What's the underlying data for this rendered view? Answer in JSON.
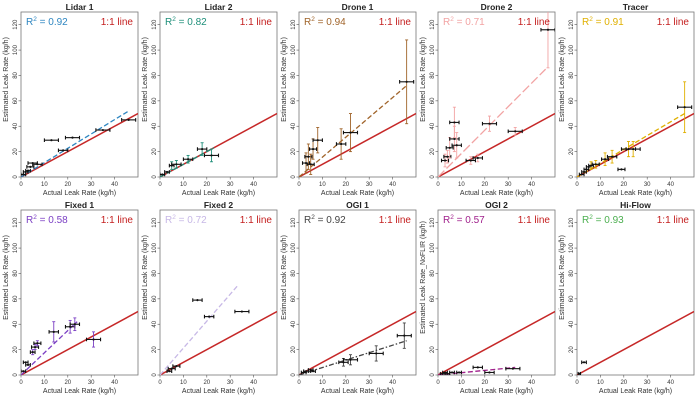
{
  "figure": {
    "one_to_one_label": "1:1 line",
    "one_to_one_color": "#c62828",
    "errorbar_color": "#111111",
    "xlabel": "Actual Leak Rate (kg/h)",
    "ylabel": "Estimated Leak Rate (kg/h)"
  },
  "chart_data": [
    {
      "type": "scatter",
      "title": "Lidar 1",
      "r2_label": "R",
      "r2_value": " = 0.92",
      "color": "#2e86c1",
      "xlabel": "Actual Leak Rate (kg/h)",
      "ylabel": "Estimated Leak Rate (kg/h)",
      "xlim": [
        0,
        50
      ],
      "ylim": [
        0,
        130
      ],
      "xticks": [
        0,
        10,
        20,
        30,
        40
      ],
      "yticks": [
        0,
        20,
        40,
        60,
        80,
        100,
        120
      ],
      "grid": false,
      "points": [
        {
          "x": 1,
          "y": 2,
          "ex": 1
        },
        {
          "x": 2,
          "y": 4,
          "ex": 1
        },
        {
          "x": 3,
          "y": 5,
          "ex": 1
        },
        {
          "x": 4,
          "y": 8,
          "ex": 1.5
        },
        {
          "x": 5,
          "y": 11,
          "ex": 2
        },
        {
          "x": 7,
          "y": 10,
          "ex": 2
        },
        {
          "x": 13,
          "y": 29,
          "ex": 3
        },
        {
          "x": 18,
          "y": 21,
          "ex": 2
        },
        {
          "x": 22,
          "y": 31,
          "ex": 3
        },
        {
          "x": 35,
          "y": 37,
          "ex": 3
        },
        {
          "x": 46,
          "y": 45,
          "ex": 3
        }
      ],
      "fit": {
        "x": [
          0,
          46
        ],
        "y": [
          0,
          52
        ],
        "style": "dashed"
      }
    },
    {
      "type": "scatter",
      "title": "Lidar 2",
      "r2_label": "R",
      "r2_value": " = 0.82",
      "color": "#1f8f7a",
      "xlabel": "Actual Leak Rate (kg/h)",
      "ylabel": "Estimated Leak Rate (kg/h)",
      "xlim": [
        0,
        50
      ],
      "ylim": [
        0,
        130
      ],
      "xticks": [
        0,
        10,
        20,
        30,
        40
      ],
      "yticks": [
        0,
        20,
        40,
        60,
        80,
        100,
        120
      ],
      "grid": false,
      "points": [
        {
          "x": 1,
          "y": 2,
          "ex": 1
        },
        {
          "x": 3,
          "y": 4,
          "ex": 1
        },
        {
          "x": 5,
          "y": 9,
          "ex": 1,
          "ey": 3
        },
        {
          "x": 7,
          "y": 10,
          "ex": 2,
          "ey": 3
        },
        {
          "x": 12,
          "y": 14,
          "ex": 2,
          "ey": 3
        },
        {
          "x": 18,
          "y": 22,
          "ex": 2,
          "ey": 5
        },
        {
          "x": 22,
          "y": 17,
          "ex": 3,
          "ey": 5
        }
      ],
      "fit": {
        "x": [
          0,
          23
        ],
        "y": [
          0,
          23
        ],
        "style": "dashed"
      }
    },
    {
      "type": "scatter",
      "title": "Drone 1",
      "r2_label": "R",
      "r2_value": " = 0.94",
      "color": "#a0642a",
      "xlabel": "Actual Leak Rate (kg/h)",
      "ylabel": "Estimated Leak Rate (kg/h)",
      "xlim": [
        0,
        50
      ],
      "ylim": [
        0,
        130
      ],
      "xticks": [
        0,
        10,
        20,
        30,
        40
      ],
      "yticks": [
        0,
        20,
        40,
        60,
        80,
        100,
        120
      ],
      "grid": false,
      "points": [
        {
          "x": 3,
          "y": 11,
          "ex": 1.5,
          "ey": 8
        },
        {
          "x": 4,
          "y": 16,
          "ex": 1.5,
          "ey": 10
        },
        {
          "x": 5,
          "y": 10,
          "ex": 1.5,
          "ey": 8
        },
        {
          "x": 6,
          "y": 22,
          "ex": 1.5,
          "ey": 8
        },
        {
          "x": 8,
          "y": 29,
          "ex": 2,
          "ey": 10
        },
        {
          "x": 18,
          "y": 26,
          "ex": 2,
          "ey": 12
        },
        {
          "x": 22,
          "y": 35,
          "ex": 3,
          "ey": 15
        },
        {
          "x": 46,
          "y": 75,
          "ex": 3,
          "ey": 33
        }
      ],
      "fit": {
        "x": [
          0,
          46
        ],
        "y": [
          0,
          72
        ],
        "style": "dashed"
      }
    },
    {
      "type": "scatter",
      "title": "Drone 2",
      "r2_label": "R",
      "r2_value": " = 0.71",
      "color": "#f2a3a3",
      "xlabel": "Actual Leak Rate (kg/h)",
      "ylabel": "Estimated Leak Rate (kg/h)",
      "xlim": [
        0,
        50
      ],
      "ylim": [
        0,
        130
      ],
      "xticks": [
        0,
        10,
        20,
        30,
        40
      ],
      "yticks": [
        0,
        20,
        40,
        60,
        80,
        100,
        120
      ],
      "grid": false,
      "points": [
        {
          "x": 3,
          "y": 13,
          "ex": 1.5,
          "ey": 5
        },
        {
          "x": 4,
          "y": 16,
          "ex": 1.5,
          "ey": 5
        },
        {
          "x": 5,
          "y": 23,
          "ex": 1.5,
          "ey": 8
        },
        {
          "x": 7,
          "y": 30,
          "ex": 2,
          "ey": 10
        },
        {
          "x": 7,
          "y": 43,
          "ex": 2,
          "ey": 12
        },
        {
          "x": 8,
          "y": 25,
          "ex": 2,
          "ey": 10
        },
        {
          "x": 14,
          "y": 13,
          "ex": 2,
          "ey": 3
        },
        {
          "x": 17,
          "y": 15,
          "ex": 2,
          "ey": 3
        },
        {
          "x": 22,
          "y": 42,
          "ex": 3,
          "ey": 6
        },
        {
          "x": 33,
          "y": 36,
          "ex": 3,
          "ey": 3
        },
        {
          "x": 47,
          "y": 116,
          "ex": 3,
          "ey": 30
        }
      ],
      "fit": {
        "x": [
          0,
          46
        ],
        "y": [
          0,
          85
        ],
        "style": "long-dash"
      }
    },
    {
      "type": "scatter",
      "title": "Tracer",
      "r2_label": "R",
      "r2_value": " = 0.91",
      "color": "#e0b000",
      "xlabel": "Actual Leak Rate (kg/h)",
      "ylabel": "Estimated Leak Rate (kg/h)",
      "xlim": [
        0,
        50
      ],
      "ylim": [
        0,
        130
      ],
      "xticks": [
        0,
        10,
        20,
        30,
        40
      ],
      "yticks": [
        0,
        20,
        40,
        60,
        80,
        100,
        120
      ],
      "grid": false,
      "points": [
        {
          "x": 2,
          "y": 2,
          "ex": 1
        },
        {
          "x": 3,
          "y": 4,
          "ex": 1
        },
        {
          "x": 4,
          "y": 6,
          "ex": 1
        },
        {
          "x": 5,
          "y": 8,
          "ex": 1
        },
        {
          "x": 6,
          "y": 9,
          "ex": 1,
          "ey": 3
        },
        {
          "x": 8,
          "y": 10,
          "ex": 1.5,
          "ey": 3
        },
        {
          "x": 12,
          "y": 14,
          "ex": 1.5,
          "ey": 5
        },
        {
          "x": 15,
          "y": 16,
          "ex": 2,
          "ey": 5
        },
        {
          "x": 19,
          "y": 6,
          "ex": 1.5
        },
        {
          "x": 22,
          "y": 22,
          "ex": 3,
          "ey": 6
        },
        {
          "x": 24,
          "y": 22,
          "ex": 3,
          "ey": 6
        },
        {
          "x": 46,
          "y": 55,
          "ex": 3,
          "ey": 20
        }
      ],
      "fit": {
        "x": [
          0,
          46
        ],
        "y": [
          0,
          50
        ],
        "style": "dashed"
      }
    },
    {
      "type": "scatter",
      "title": "Fixed 1",
      "r2_label": "R",
      "r2_value": " = 0.58",
      "color": "#7b3fc4",
      "xlabel": "Actual Leak Rate (kg/h)",
      "ylabel": "Estimated Leak Rate (kg/h)",
      "xlim": [
        0,
        50
      ],
      "ylim": [
        0,
        130
      ],
      "xticks": [
        0,
        10,
        20,
        30,
        40
      ],
      "yticks": [
        0,
        20,
        40,
        60,
        80,
        100,
        120
      ],
      "grid": false,
      "points": [
        {
          "x": 1,
          "y": 3,
          "ex": 1
        },
        {
          "x": 2,
          "y": 10,
          "ex": 1
        },
        {
          "x": 3,
          "y": 8,
          "ex": 1
        },
        {
          "x": 5,
          "y": 18,
          "ex": 1,
          "ey": 2
        },
        {
          "x": 6,
          "y": 22,
          "ex": 1.5,
          "ey": 2
        },
        {
          "x": 7,
          "y": 25,
          "ex": 1.5,
          "ey": 2
        },
        {
          "x": 14,
          "y": 34,
          "ex": 2,
          "ey": 8
        },
        {
          "x": 21,
          "y": 38,
          "ex": 2,
          "ey": 5
        },
        {
          "x": 23,
          "y": 40,
          "ex": 2,
          "ey": 5
        },
        {
          "x": 31,
          "y": 28,
          "ex": 3,
          "ey": 6
        }
      ],
      "fit": {
        "x": [
          0,
          24
        ],
        "y": [
          0,
          42
        ],
        "style": "dashed"
      }
    },
    {
      "type": "scatter",
      "title": "Fixed 2",
      "r2_label": "R",
      "r2_value": " = 0.72",
      "color": "#c7b8e6",
      "xlabel": "Actual Leak Rate (kg/h)",
      "ylabel": "Estimated Leak Rate (kg/h)",
      "xlim": [
        0,
        50
      ],
      "ylim": [
        0,
        130
      ],
      "xticks": [
        0,
        10,
        20,
        30,
        40
      ],
      "yticks": [
        0,
        20,
        40,
        60,
        80,
        100,
        120
      ],
      "grid": false,
      "points": [
        {
          "x": 4,
          "y": 3,
          "ex": 1
        },
        {
          "x": 5,
          "y": 5,
          "ex": 1.5
        },
        {
          "x": 7,
          "y": 7,
          "ex": 1.5
        },
        {
          "x": 16,
          "y": 59,
          "ex": 2
        },
        {
          "x": 21,
          "y": 46,
          "ex": 2
        },
        {
          "x": 35,
          "y": 50,
          "ex": 3
        }
      ],
      "fit": {
        "x": [
          0,
          33
        ],
        "y": [
          0,
          70
        ],
        "style": "dashed"
      }
    },
    {
      "type": "scatter",
      "title": "OGI 1",
      "r2_label": "R",
      "r2_value": " = 0.92",
      "color": "#444444",
      "xlabel": "Actual Leak Rate (kg/h)",
      "ylabel": "Estimated Leak Rate (kg/h)",
      "xlim": [
        0,
        50
      ],
      "ylim": [
        0,
        130
      ],
      "xticks": [
        0,
        10,
        20,
        30,
        40
      ],
      "yticks": [
        0,
        20,
        40,
        60,
        80,
        100,
        120
      ],
      "grid": false,
      "points": [
        {
          "x": 2,
          "y": 2,
          "ex": 1
        },
        {
          "x": 3,
          "y": 3,
          "ex": 1
        },
        {
          "x": 5,
          "y": 4,
          "ex": 1
        },
        {
          "x": 6,
          "y": 3,
          "ex": 1
        },
        {
          "x": 19,
          "y": 10,
          "ex": 2,
          "ey": 3
        },
        {
          "x": 22,
          "y": 12,
          "ex": 3,
          "ey": 4
        },
        {
          "x": 33,
          "y": 17,
          "ex": 3,
          "ey": 6
        },
        {
          "x": 45,
          "y": 31,
          "ex": 3,
          "ey": 10
        }
      ],
      "fit": {
        "x": [
          0,
          46
        ],
        "y": [
          0,
          27
        ],
        "style": "dash-dot"
      }
    },
    {
      "type": "scatter",
      "title": "OGI 2",
      "r2_label": "R",
      "r2_value": " = 0.57",
      "color": "#a0218c",
      "xlabel": "Actual Leak Rate (kg/h)",
      "ylabel": "Estimated Leak Rate_NoFLIR (kg/h)",
      "xlim": [
        0,
        50
      ],
      "ylim": [
        0,
        130
      ],
      "xticks": [
        0,
        10,
        20,
        30,
        40
      ],
      "yticks": [
        0,
        20,
        40,
        60,
        80,
        100,
        120
      ],
      "grid": false,
      "points": [
        {
          "x": 2,
          "y": 1,
          "ex": 1
        },
        {
          "x": 3,
          "y": 2,
          "ex": 1
        },
        {
          "x": 4,
          "y": 1,
          "ex": 1
        },
        {
          "x": 6,
          "y": 2,
          "ex": 1
        },
        {
          "x": 9,
          "y": 2,
          "ex": 1
        },
        {
          "x": 17,
          "y": 6,
          "ex": 2
        },
        {
          "x": 22,
          "y": 2,
          "ex": 2
        },
        {
          "x": 32,
          "y": 5,
          "ex": 3
        }
      ],
      "fit": {
        "x": [
          0,
          33
        ],
        "y": [
          0,
          6
        ],
        "style": "dashed"
      }
    },
    {
      "type": "scatter",
      "title": "Hi-Flow",
      "r2_label": "R",
      "r2_value": " = 0.93",
      "color": "#4caf50",
      "xlabel": "Actual Leak Rate (kg/h)",
      "ylabel": "Estimated Leak Rate (kg/h)",
      "xlim": [
        0,
        50
      ],
      "ylim": [
        0,
        130
      ],
      "xticks": [
        0,
        10,
        20,
        30,
        40
      ],
      "yticks": [
        0,
        20,
        40,
        60,
        80,
        100,
        120
      ],
      "grid": false,
      "points": [
        {
          "x": 1,
          "y": 1,
          "ex": 0.5
        },
        {
          "x": 3,
          "y": 10,
          "ex": 1
        }
      ],
      "fit": null
    }
  ]
}
